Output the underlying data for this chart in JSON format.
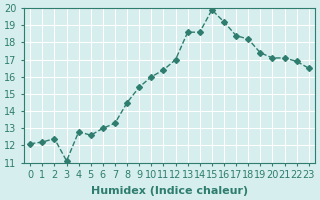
{
  "xlabel": "Humidex (Indice chaleur)",
  "ylabel": "",
  "x": [
    0,
    1,
    2,
    3,
    4,
    5,
    6,
    7,
    8,
    9,
    10,
    11,
    12,
    13,
    14,
    15,
    16,
    17,
    18,
    19,
    20,
    21,
    22,
    23
  ],
  "y": [
    12.1,
    12.2,
    12.4,
    11.1,
    12.8,
    12.6,
    13.0,
    13.3,
    14.5,
    15.4,
    16.0,
    16.4,
    17.0,
    18.6,
    18.6,
    19.9,
    19.2,
    18.4,
    18.2,
    17.4,
    17.1,
    17.1,
    16.9,
    16.5
  ],
  "ylim": [
    11,
    20
  ],
  "xlim": [
    0,
    23
  ],
  "yticks": [
    11,
    12,
    13,
    14,
    15,
    16,
    17,
    18,
    19,
    20
  ],
  "xticks": [
    0,
    1,
    2,
    3,
    4,
    5,
    6,
    7,
    8,
    9,
    10,
    11,
    12,
    13,
    14,
    15,
    16,
    17,
    18,
    19,
    20,
    21,
    22,
    23
  ],
  "xtick_labels": [
    "0",
    "1",
    "2",
    "3",
    "4",
    "5",
    "6",
    "7",
    "8",
    "9",
    "10",
    "11",
    "12",
    "13",
    "14",
    "15",
    "16",
    "17",
    "18",
    "19",
    "20",
    "21",
    "22",
    "23"
  ],
  "line_color": "#2e7d6e",
  "marker": "D",
  "marker_size": 3,
  "bg_color": "#d6eeee",
  "grid_color": "#ffffff",
  "title_fontsize": 7,
  "label_fontsize": 8,
  "tick_fontsize": 7
}
